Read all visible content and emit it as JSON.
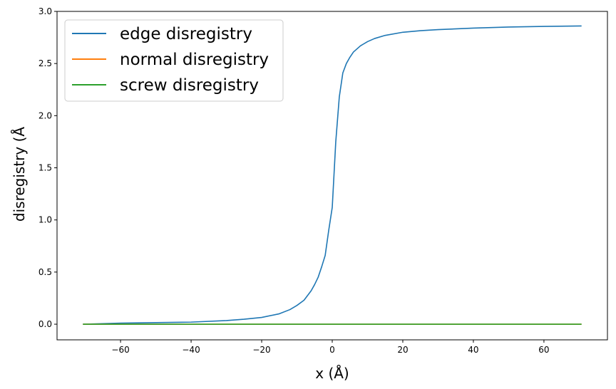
{
  "chart_data": {
    "type": "line",
    "title": "",
    "xlabel": "x (Å)",
    "ylabel": "disregistry (Å",
    "xlim": [
      -78,
      78
    ],
    "ylim": [
      -0.15,
      3.0
    ],
    "xticks": [
      -60,
      -40,
      -20,
      0,
      20,
      40,
      60
    ],
    "xtick_labels": [
      "−60",
      "−40",
      "−20",
      "0",
      "20",
      "40",
      "60"
    ],
    "yticks": [
      0.0,
      0.5,
      1.0,
      1.5,
      2.0,
      2.5,
      3.0
    ],
    "ytick_labels": [
      "0.0",
      "0.5",
      "1.0",
      "1.5",
      "2.0",
      "2.5",
      "3.0"
    ],
    "grid": false,
    "legend_position": "top-left",
    "series": [
      {
        "name": "edge disregistry",
        "color": "#1f77b4",
        "x": [
          -70.5,
          -60,
          -50,
          -40,
          -30,
          -25,
          -20,
          -15,
          -12,
          -10,
          -8,
          -6,
          -5,
          -4,
          -3,
          -2,
          -1,
          0,
          1,
          2,
          3,
          4,
          5,
          6,
          8,
          10,
          12,
          15,
          20,
          25,
          30,
          40,
          50,
          60,
          70.5
        ],
        "y": [
          0.0,
          0.01,
          0.015,
          0.02,
          0.035,
          0.048,
          0.065,
          0.1,
          0.14,
          0.18,
          0.23,
          0.32,
          0.38,
          0.45,
          0.55,
          0.66,
          0.9,
          1.12,
          1.75,
          2.18,
          2.41,
          2.5,
          2.56,
          2.61,
          2.67,
          2.71,
          2.74,
          2.77,
          2.8,
          2.815,
          2.825,
          2.84,
          2.85,
          2.856,
          2.86
        ]
      },
      {
        "name": "normal disregistry",
        "color": "#ff7f0e",
        "x": [
          -70.5,
          70.5
        ],
        "y": [
          0.0,
          0.0
        ]
      },
      {
        "name": "screw disregistry",
        "color": "#2ca02c",
        "x": [
          -70.5,
          70.5
        ],
        "y": [
          0.0,
          0.0
        ]
      }
    ]
  }
}
